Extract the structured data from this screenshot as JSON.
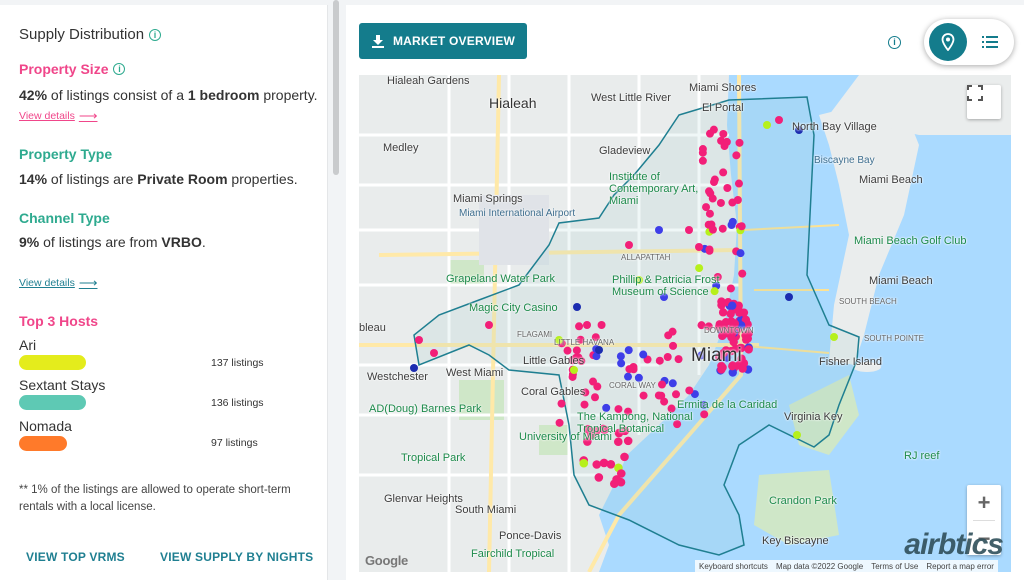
{
  "left": {
    "title": "Supply Distribution",
    "property_size": {
      "heading": "Property Size",
      "pct": "42%",
      "text_a": " of listings consist of a ",
      "value": "1 bedroom",
      "text_b": " property.",
      "link": "View details"
    },
    "property_type": {
      "heading": "Property Type",
      "pct": "14%",
      "text_a": " of listings are ",
      "value": "Private Room",
      "text_b": " properties."
    },
    "channel_type": {
      "heading": "Channel Type",
      "pct": "9%",
      "text_a": " of listings are from ",
      "value": "VRBO",
      "text_b": ".",
      "link": "View details"
    },
    "top_hosts": {
      "heading": "Top 3 Hosts",
      "hosts": [
        {
          "name": "Ari",
          "count": "137 listings",
          "color": "#e4ec1c"
        },
        {
          "name": "Sextant Stays",
          "count": "136 listings",
          "color": "#5ec9b4"
        },
        {
          "name": "Nomada",
          "count": "97 listings",
          "color": "#ff7a2a"
        }
      ]
    },
    "note": "** 1% of the listings are allowed to operate short-term rentals with a local license.",
    "links": {
      "top_vrms": "VIEW TOP VRMS",
      "supply_by_nights": "VIEW SUPPLY BY NIGHTS"
    }
  },
  "right": {
    "market_button": "MARKET OVERVIEW",
    "icons": {
      "info": "info-icon",
      "map_view": "map-pin-icon",
      "list_view": "list-icon",
      "download": "download-icon"
    },
    "map": {
      "labels": [
        {
          "text": "Hialeah Gardens",
          "cls": ""
        },
        {
          "text": "Hialeah",
          "cls": "big"
        },
        {
          "text": "West Little River",
          "cls": ""
        },
        {
          "text": "Miami Shores",
          "cls": ""
        },
        {
          "text": "El Portal",
          "cls": ""
        },
        {
          "text": "North Bay Village",
          "cls": ""
        },
        {
          "text": "Medley",
          "cls": ""
        },
        {
          "text": "Gladeview",
          "cls": ""
        },
        {
          "text": "Institute of Contemporary Art, Miami",
          "cls": "green"
        },
        {
          "text": "Miami Beach",
          "cls": ""
        },
        {
          "text": "Miami Springs",
          "cls": ""
        },
        {
          "text": "Miami International Airport",
          "cls": "blue"
        },
        {
          "text": "Miami Beach Golf Club",
          "cls": "green"
        },
        {
          "text": "ALLAPATTAH",
          "cls": "sm"
        },
        {
          "text": "Grapeland Water Park",
          "cls": "green"
        },
        {
          "text": "Phillip & Patricia Frost Museum of Science",
          "cls": "green"
        },
        {
          "text": "Miami Beach",
          "cls": ""
        },
        {
          "text": "SOUTH BEACH",
          "cls": "sm"
        },
        {
          "text": "Magic City Casino",
          "cls": "green"
        },
        {
          "text": "FLAGAMI",
          "cls": "sm"
        },
        {
          "text": "LITTLE HAVANA",
          "cls": "sm"
        },
        {
          "text": "DOWNTOWN",
          "cls": "sm"
        },
        {
          "text": "Miami",
          "cls": "huge"
        },
        {
          "text": "Fisher Island",
          "cls": ""
        },
        {
          "text": "Westchester",
          "cls": ""
        },
        {
          "text": "West Miami",
          "cls": ""
        },
        {
          "text": "Little Gables",
          "cls": ""
        },
        {
          "text": "Coral Gables",
          "cls": ""
        },
        {
          "text": "Ermita de la Caridad",
          "cls": "green"
        },
        {
          "text": "AD(Doug) Barnes Park",
          "cls": "green"
        },
        {
          "text": "The Kampong, National Tropical Botanical",
          "cls": "green"
        },
        {
          "text": "Virginia Key",
          "cls": ""
        },
        {
          "text": "University of Miami",
          "cls": "green"
        },
        {
          "text": "Tropical Park",
          "cls": "green"
        },
        {
          "text": "RJ reef",
          "cls": "green"
        },
        {
          "text": "Glenvar Heights",
          "cls": ""
        },
        {
          "text": "South Miami",
          "cls": ""
        },
        {
          "text": "Crandon Park",
          "cls": "green"
        },
        {
          "text": "Ponce-Davis",
          "cls": ""
        },
        {
          "text": "Key Biscayne",
          "cls": ""
        },
        {
          "text": "Fairchild Tropical",
          "cls": "green"
        },
        {
          "text": "Biscayne Bay",
          "cls": "blue"
        },
        {
          "text": "bleau",
          "cls": ""
        },
        {
          "text": "SOUTH POINTE",
          "cls": "sm"
        },
        {
          "text": "CORAL WAY",
          "cls": "sm"
        }
      ],
      "footer": [
        "Keyboard shortcuts",
        "Map data ©2022 Google",
        "Terms of Use",
        "Report a map error"
      ],
      "google_logo": "Google",
      "brand": "airbtics",
      "zoom_in": "+",
      "zoom_out": "−",
      "marker_colors": {
        "pink": "#f21f78",
        "blue": "#3e3ee8",
        "lime": "#b6f01c",
        "navy": "#1b2cb0"
      }
    }
  }
}
